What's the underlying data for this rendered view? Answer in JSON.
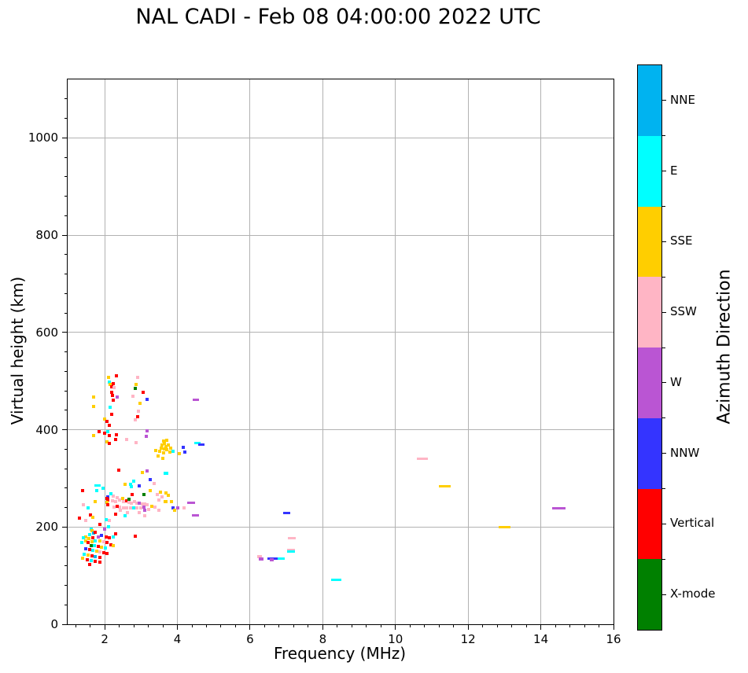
{
  "title": "NAL CADI - Feb 08 04:00:00 2022 UTC",
  "chart_data": {
    "type": "scatter",
    "title": "NAL CADI - Feb 08 04:00:00 2022 UTC",
    "xlabel": "Frequency (MHz)",
    "ylabel": "Virtual height (km)",
    "xlim": [
      0.98,
      16.0
    ],
    "ylim": [
      0,
      1120
    ],
    "xticks": [
      2,
      4,
      6,
      8,
      10,
      12,
      14,
      16
    ],
    "yticks": [
      0,
      200,
      400,
      600,
      800,
      1000
    ],
    "xminor_step": 0.4,
    "yminor_step": 40,
    "grid": true,
    "legend_position": "right-colorbar",
    "colorbar": {
      "label": "Azimuth Direction",
      "categories_top_to_bottom": [
        "NNE",
        "E",
        "SSE",
        "SSW",
        "W",
        "NNW",
        "Vertical",
        "X-mode"
      ],
      "colors": {
        "NNE": "#00b3f0",
        "E": "#00ffff",
        "SSE": "#ffce00",
        "SSW": "#ffb5c5",
        "W": "#ba55d3",
        "NNW": "#3434ff",
        "Vertical": "#ff0000",
        "X-mode": "#008000"
      }
    },
    "points_format": [
      "frequency_MHz",
      "virtual_height_km",
      "azimuth_direction",
      "marker_width_px_optional"
    ],
    "points": [
      [
        1.55,
        239,
        "E"
      ],
      [
        1.39,
        275,
        "Vertical"
      ],
      [
        1.78,
        275,
        "E"
      ],
      [
        1.42,
        246,
        "SSW"
      ],
      [
        1.61,
        225,
        "Vertical"
      ],
      [
        1.68,
        220,
        "SSE"
      ],
      [
        1.48,
        213,
        "SSW"
      ],
      [
        2.04,
        215,
        "E"
      ],
      [
        2.13,
        213,
        "SSW"
      ],
      [
        1.87,
        205,
        "Vertical"
      ],
      [
        2.11,
        200,
        "E"
      ],
      [
        2.0,
        196,
        "W"
      ],
      [
        1.63,
        196,
        "E"
      ],
      [
        1.65,
        192,
        "SSE"
      ],
      [
        1.69,
        187,
        "NNE"
      ],
      [
        1.74,
        189,
        "Vertical"
      ],
      [
        1.59,
        184,
        "E"
      ],
      [
        1.48,
        179,
        "SSE"
      ],
      [
        1.42,
        178,
        "E"
      ],
      [
        1.57,
        176,
        "SSE"
      ],
      [
        1.68,
        178,
        "Vertical"
      ],
      [
        1.82,
        179,
        "W"
      ],
      [
        1.91,
        183,
        "NNW"
      ],
      [
        2.04,
        179,
        "Vertical"
      ],
      [
        2.13,
        178,
        "Vertical"
      ],
      [
        2.24,
        179,
        "E"
      ],
      [
        2.3,
        186,
        "Vertical"
      ],
      [
        1.48,
        171,
        "SSE"
      ],
      [
        1.37,
        168,
        "E"
      ],
      [
        1.55,
        168,
        "Vertical"
      ],
      [
        1.65,
        170,
        "SSE"
      ],
      [
        1.74,
        171,
        "E"
      ],
      [
        1.87,
        171,
        "SSE"
      ],
      [
        1.98,
        170,
        "SSW"
      ],
      [
        2.06,
        168,
        "Vertical"
      ],
      [
        2.17,
        163,
        "Vertical"
      ],
      [
        2.24,
        162,
        "SSE"
      ],
      [
        1.63,
        162,
        "X-mode"
      ],
      [
        1.72,
        162,
        "E"
      ],
      [
        1.82,
        160,
        "Vertical"
      ],
      [
        1.91,
        158,
        "SSE"
      ],
      [
        2.02,
        157,
        "E"
      ],
      [
        1.48,
        155,
        "NNW"
      ],
      [
        1.59,
        153,
        "Vertical"
      ],
      [
        1.68,
        152,
        "E"
      ],
      [
        1.78,
        150,
        "SSE"
      ],
      [
        1.87,
        149,
        "SSW"
      ],
      [
        1.98,
        147,
        "Vertical"
      ],
      [
        2.06,
        145,
        "Vertical"
      ],
      [
        1.44,
        144,
        "E"
      ],
      [
        1.55,
        142,
        "SSE"
      ],
      [
        1.65,
        141,
        "Vertical"
      ],
      [
        1.74,
        139,
        "NNE"
      ],
      [
        1.87,
        137,
        "Vertical"
      ],
      [
        1.39,
        136,
        "SSE"
      ],
      [
        1.52,
        133,
        "Vertical"
      ],
      [
        1.63,
        131,
        "E"
      ],
      [
        1.74,
        129,
        "Vertical"
      ],
      [
        1.87,
        128,
        "Vertical"
      ],
      [
        1.59,
        123,
        "Vertical"
      ],
      [
        2.84,
        181,
        "Vertical"
      ],
      [
        1.31,
        218,
        "Vertical"
      ],
      [
        2.56,
        288,
        "SSE"
      ],
      [
        2.71,
        288,
        "E"
      ],
      [
        2.73,
        283,
        "E"
      ],
      [
        2.95,
        284,
        "NNW"
      ],
      [
        3.36,
        289,
        "SSW"
      ],
      [
        3.53,
        271,
        "SSE"
      ],
      [
        3.69,
        270,
        "SSE"
      ],
      [
        3.75,
        265,
        "SSE"
      ],
      [
        3.84,
        252,
        "SSE"
      ],
      [
        2.09,
        262,
        "NNW"
      ],
      [
        2.09,
        255,
        "Vertical"
      ],
      [
        2.07,
        250,
        "SSE"
      ],
      [
        2.09,
        246,
        "Vertical"
      ],
      [
        2.24,
        263,
        "SSW"
      ],
      [
        2.35,
        260,
        "SSW"
      ],
      [
        2.22,
        254,
        "SSW"
      ],
      [
        2.3,
        252,
        "SSW"
      ],
      [
        2.41,
        255,
        "SSW"
      ],
      [
        2.49,
        259,
        "SSE"
      ],
      [
        2.52,
        252,
        "SSW"
      ],
      [
        2.6,
        254,
        "Vertical"
      ],
      [
        2.67,
        250,
        "SSW"
      ],
      [
        2.73,
        249,
        "SSW"
      ],
      [
        2.82,
        252,
        "SSW"
      ],
      [
        2.88,
        249,
        "SSW"
      ],
      [
        2.95,
        249,
        "W"
      ],
      [
        3.04,
        247,
        "SSW"
      ],
      [
        3.1,
        247,
        "SSW"
      ],
      [
        3.17,
        246,
        "SSW"
      ],
      [
        3.08,
        241,
        "W"
      ],
      [
        3.0,
        239,
        "SSW"
      ],
      [
        2.88,
        239,
        "SSW"
      ],
      [
        2.8,
        239,
        "E"
      ],
      [
        2.71,
        239,
        "SSW"
      ],
      [
        2.6,
        239,
        "SSW"
      ],
      [
        2.52,
        239,
        "SSW"
      ],
      [
        2.41,
        241,
        "SSW"
      ],
      [
        2.35,
        242,
        "Vertical"
      ],
      [
        2.26,
        241,
        "SSW"
      ],
      [
        2.43,
        234,
        "SSW"
      ],
      [
        3.1,
        234,
        "W"
      ],
      [
        3.21,
        236,
        "SSW"
      ],
      [
        3.3,
        242,
        "SSE"
      ],
      [
        3.38,
        241,
        "SSW"
      ],
      [
        3.49,
        234,
        "SSW"
      ],
      [
        2.95,
        229,
        "SSW"
      ],
      [
        2.63,
        229,
        "SSW"
      ],
      [
        2.3,
        226,
        "Vertical"
      ],
      [
        3.1,
        223,
        "SSW"
      ],
      [
        2.56,
        223,
        "E"
      ],
      [
        2.67,
        257,
        "X-mode"
      ],
      [
        2.06,
        258,
        "Vertical"
      ],
      [
        1.74,
        252,
        "SSE"
      ],
      [
        3.88,
        240,
        "NNW"
      ],
      [
        4.01,
        240,
        "W"
      ],
      [
        4.18,
        239,
        "SSW"
      ],
      [
        3.92,
        234,
        "SSE"
      ],
      [
        4.38,
        249,
        "W",
        10
      ],
      [
        4.5,
        224,
        "W",
        9
      ],
      [
        3.62,
        376,
        "SSE"
      ],
      [
        3.71,
        378,
        "SSE"
      ],
      [
        3.64,
        372,
        "SSE"
      ],
      [
        3.58,
        368,
        "SSE"
      ],
      [
        3.69,
        365,
        "SSE"
      ],
      [
        3.75,
        368,
        "SSE"
      ],
      [
        3.56,
        362,
        "SSE"
      ],
      [
        3.64,
        360,
        "SSE"
      ],
      [
        3.71,
        359,
        "SSE"
      ],
      [
        3.82,
        362,
        "SSE"
      ],
      [
        3.89,
        356,
        "E"
      ],
      [
        3.8,
        354,
        "SSE"
      ],
      [
        3.62,
        352,
        "SSE"
      ],
      [
        3.51,
        356,
        "SSE"
      ],
      [
        3.4,
        357,
        "SSE"
      ],
      [
        4.16,
        363,
        "NNW"
      ],
      [
        4.2,
        354,
        "NNW"
      ],
      [
        4.05,
        351,
        "SSE"
      ],
      [
        3.6,
        341,
        "SSE"
      ],
      [
        3.47,
        346,
        "SSE"
      ],
      [
        3.17,
        398,
        "W"
      ],
      [
        3.15,
        386,
        "W"
      ],
      [
        3.69,
        310,
        "E",
        6
      ],
      [
        3.03,
        312,
        "SSE"
      ],
      [
        3.17,
        315,
        "W"
      ],
      [
        3.25,
        297,
        "NNW"
      ],
      [
        2.8,
        294,
        "E"
      ],
      [
        3.25,
        275,
        "SSE"
      ],
      [
        3.08,
        266,
        "X-mode"
      ],
      [
        2.76,
        266,
        "Vertical"
      ],
      [
        3.45,
        267,
        "SSW"
      ],
      [
        3.58,
        262,
        "SSW"
      ],
      [
        3.66,
        252,
        "SSE"
      ],
      [
        3.49,
        255,
        "SSW"
      ],
      [
        3.69,
        252,
        "SSE"
      ],
      [
        2.11,
        507,
        "SSE"
      ],
      [
        2.33,
        510,
        "Vertical"
      ],
      [
        2.9,
        507,
        "SSW"
      ],
      [
        2.13,
        498,
        "E"
      ],
      [
        2.15,
        493,
        "SSE"
      ],
      [
        2.24,
        495,
        "Vertical"
      ],
      [
        2.19,
        488,
        "Vertical"
      ],
      [
        2.26,
        486,
        "SSW"
      ],
      [
        2.87,
        493,
        "SSE"
      ],
      [
        2.84,
        485,
        "X-mode"
      ],
      [
        3.06,
        477,
        "Vertical"
      ],
      [
        3.17,
        462,
        "NNW"
      ],
      [
        1.7,
        467,
        "SSE"
      ],
      [
        1.7,
        448,
        "SSE"
      ],
      [
        2.35,
        467,
        "W"
      ],
      [
        2.78,
        469,
        "SSW"
      ],
      [
        2.2,
        477,
        "Vertical"
      ],
      [
        2.22,
        470,
        "Vertical"
      ],
      [
        2.24,
        460,
        "Vertical"
      ],
      [
        2.15,
        446,
        "E"
      ],
      [
        2.19,
        432,
        "Vertical"
      ],
      [
        2.97,
        454,
        "SSE"
      ],
      [
        2.93,
        438,
        "SSW"
      ],
      [
        2.0,
        422,
        "SSE"
      ],
      [
        2.07,
        417,
        "Vertical"
      ],
      [
        2.13,
        409,
        "Vertical"
      ],
      [
        2.84,
        420,
        "SSW"
      ],
      [
        2.9,
        427,
        "Vertical"
      ],
      [
        1.85,
        396,
        "Vertical"
      ],
      [
        1.7,
        388,
        "SSE"
      ],
      [
        2.0,
        393,
        "Vertical"
      ],
      [
        2.09,
        396,
        "E"
      ],
      [
        2.13,
        388,
        "Vertical"
      ],
      [
        2.33,
        389,
        "Vertical"
      ],
      [
        2.31,
        380,
        "Vertical"
      ],
      [
        2.07,
        375,
        "SSE"
      ],
      [
        2.12,
        372,
        "Vertical"
      ],
      [
        2.6,
        380,
        "SSW"
      ],
      [
        2.87,
        373,
        "SSW"
      ],
      [
        1.81,
        286,
        "E",
        8
      ],
      [
        1.96,
        280,
        "E"
      ],
      [
        2.17,
        268,
        "E"
      ],
      [
        2.39,
        317,
        "Vertical"
      ],
      [
        4.5,
        461,
        "W",
        8
      ],
      [
        4.55,
        372,
        "E",
        8
      ],
      [
        4.65,
        370,
        "NNW",
        8
      ],
      [
        7.0,
        228,
        "NNW",
        9
      ],
      [
        7.15,
        177,
        "SSW",
        10
      ],
      [
        7.13,
        153,
        "SSW",
        10
      ],
      [
        7.13,
        150,
        "E",
        10
      ],
      [
        6.26,
        139,
        "SSW",
        6
      ],
      [
        6.3,
        134,
        "W",
        6
      ],
      [
        6.56,
        135,
        "NNW",
        8
      ],
      [
        6.7,
        135,
        "NNW",
        8
      ],
      [
        6.85,
        135,
        "E",
        9
      ],
      [
        6.6,
        132,
        "W",
        5
      ],
      [
        8.37,
        92,
        "E",
        13
      ],
      [
        10.75,
        340,
        "SSW",
        14
      ],
      [
        11.35,
        283,
        "SSE",
        15
      ],
      [
        13.0,
        200,
        "SSE",
        15
      ],
      [
        14.5,
        238,
        "W",
        17
      ]
    ]
  }
}
